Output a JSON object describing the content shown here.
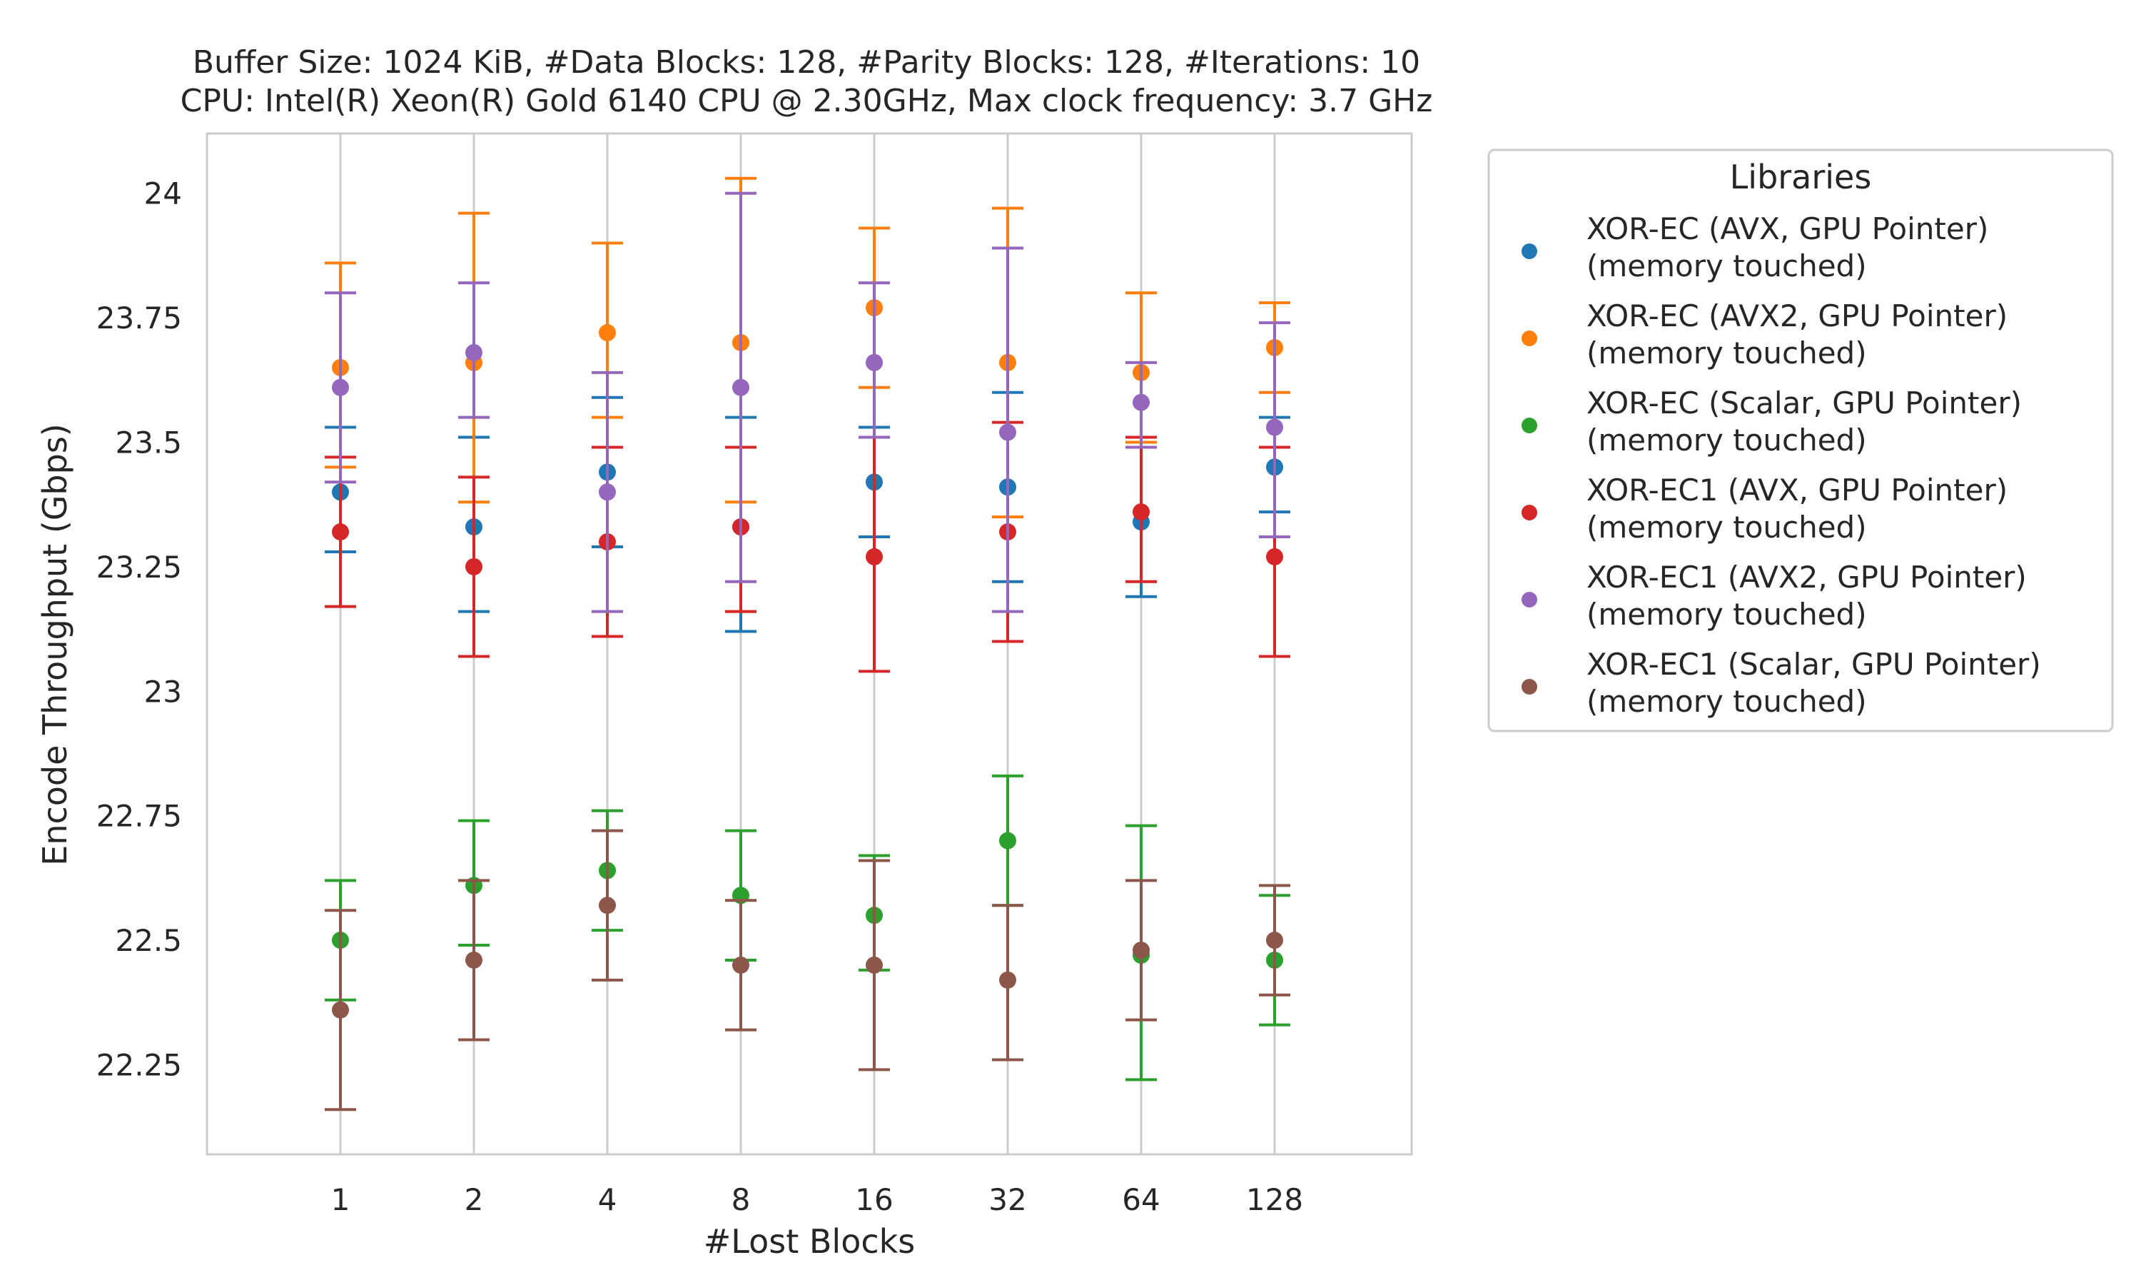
{
  "chart_data": {
    "type": "scatter",
    "title_lines": [
      "Buffer Size: 1024 KiB, #Data Blocks: 128, #Parity Blocks: 128, #Iterations: 10",
      "CPU: Intel(R) Xeon(R) Gold 6140 CPU @ 2.30GHz, Max clock frequency: 3.7 GHz"
    ],
    "xlabel": "#Lost Blocks",
    "ylabel": "Encode Throughput (Gbps)",
    "categories": [
      "1",
      "2",
      "4",
      "8",
      "16",
      "32",
      "64",
      "128"
    ],
    "ylim": [
      22.07,
      24.12
    ],
    "yticks": [
      22.25,
      22.5,
      22.75,
      23,
      23.25,
      23.5,
      23.75,
      24
    ],
    "ytick_labels": [
      "22.25",
      "22.5",
      "22.75",
      "23",
      "23.25",
      "23.5",
      "23.75",
      "24"
    ],
    "grid": "vertical",
    "legend": {
      "title": "Libraries",
      "placement": "outside-right"
    },
    "series": [
      {
        "name": "XOR-EC (AVX, GPU Pointer)",
        "name_line2": "(memory touched)",
        "color": "#1f77b4",
        "values": [
          23.4,
          23.33,
          23.44,
          23.33,
          23.42,
          23.41,
          23.34,
          23.45
        ],
        "err_low": [
          23.28,
          23.16,
          23.29,
          23.12,
          23.31,
          23.22,
          23.19,
          23.36
        ],
        "err_high": [
          23.53,
          23.51,
          23.59,
          23.55,
          23.53,
          23.6,
          23.49,
          23.55
        ]
      },
      {
        "name": "XOR-EC (AVX2, GPU Pointer)",
        "name_line2": "(memory touched)",
        "color": "#ff7f0e",
        "values": [
          23.65,
          23.66,
          23.72,
          23.7,
          23.77,
          23.66,
          23.64,
          23.69
        ],
        "err_low": [
          23.45,
          23.38,
          23.55,
          23.38,
          23.61,
          23.35,
          23.5,
          23.6
        ],
        "err_high": [
          23.86,
          23.96,
          23.9,
          24.03,
          23.93,
          23.97,
          23.8,
          23.78
        ]
      },
      {
        "name": "XOR-EC (Scalar, GPU Pointer)",
        "name_line2": "(memory touched)",
        "color": "#2ca02c",
        "values": [
          22.5,
          22.61,
          22.64,
          22.59,
          22.55,
          22.7,
          22.47,
          22.46
        ],
        "err_low": [
          22.38,
          22.49,
          22.52,
          22.46,
          22.44,
          22.57,
          22.22,
          22.33
        ],
        "err_high": [
          22.62,
          22.74,
          22.76,
          22.72,
          22.67,
          22.83,
          22.73,
          22.59
        ]
      },
      {
        "name": "XOR-EC1 (AVX, GPU Pointer)",
        "name_line2": "(memory touched)",
        "color": "#d62728",
        "values": [
          23.32,
          23.25,
          23.3,
          23.33,
          23.27,
          23.32,
          23.36,
          23.27
        ],
        "err_low": [
          23.17,
          23.07,
          23.11,
          23.16,
          23.04,
          23.1,
          23.22,
          23.07
        ],
        "err_high": [
          23.47,
          23.43,
          23.49,
          23.49,
          23.51,
          23.54,
          23.51,
          23.49
        ]
      },
      {
        "name": "XOR-EC1 (AVX2, GPU Pointer)",
        "name_line2": "(memory touched)",
        "color": "#9467bd",
        "values": [
          23.61,
          23.68,
          23.4,
          23.61,
          23.66,
          23.52,
          23.58,
          23.53
        ],
        "err_low": [
          23.42,
          23.55,
          23.16,
          23.22,
          23.51,
          23.16,
          23.49,
          23.31
        ],
        "err_high": [
          23.8,
          23.82,
          23.64,
          24.0,
          23.82,
          23.89,
          23.66,
          23.74
        ]
      },
      {
        "name": "XOR-EC1 (Scalar, GPU Pointer)",
        "name_line2": "(memory touched)",
        "color": "#8c564b",
        "values": [
          22.36,
          22.46,
          22.57,
          22.45,
          22.45,
          22.42,
          22.48,
          22.5
        ],
        "err_low": [
          22.16,
          22.3,
          22.42,
          22.32,
          22.24,
          22.26,
          22.34,
          22.39
        ],
        "err_high": [
          22.56,
          22.62,
          22.72,
          22.58,
          22.66,
          22.57,
          22.62,
          22.61
        ]
      }
    ]
  }
}
